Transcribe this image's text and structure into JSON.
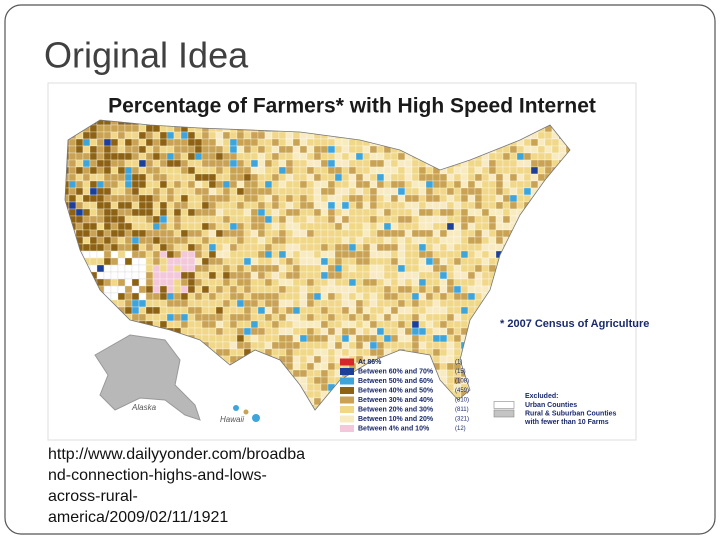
{
  "slide": {
    "title": "Original Idea",
    "source_lines": [
      "http://www.dailyyonder.com/broadba",
      "nd-connection-highs-and-lows-",
      "across-rural-",
      "america/2009/02/11/1921"
    ]
  },
  "map": {
    "title": "Percentage of Farmers* with High Speed Internet",
    "note": "* 2007 Census of Agriculture",
    "regions": [
      "Alaska",
      "Hawaii"
    ],
    "legend": [
      {
        "label": "At 86%",
        "count": "(1)",
        "color": "#d8262a"
      },
      {
        "label": "Between 60% and 70%",
        "count": "(15)",
        "color": "#1d3f9a"
      },
      {
        "label": "Between 50% and 60%",
        "count": "(108)",
        "color": "#3ea4dc"
      },
      {
        "label": "Between 40% and 50%",
        "count": "(459)",
        "color": "#8d6212"
      },
      {
        "label": "Between 30% and 40%",
        "count": "(810)",
        "color": "#c9a253"
      },
      {
        "label": "Between 20% and 30%",
        "count": "(811)",
        "color": "#f0d888"
      },
      {
        "label": "Between 10% and 20%",
        "count": "(321)",
        "color": "#f8ebc2"
      },
      {
        "label": "Between 4% and 10%",
        "count": "(12)",
        "color": "#f2c8da"
      }
    ],
    "excluded": {
      "heading": "Excluded:",
      "items": [
        {
          "lines": [
            "Urban Counties"
          ],
          "swatch": "#ffffff"
        },
        {
          "lines": [
            "Rural & Suburban Counties",
            "with fewer than 10 Farms"
          ],
          "swatch": "#c4c4c4"
        }
      ]
    }
  }
}
